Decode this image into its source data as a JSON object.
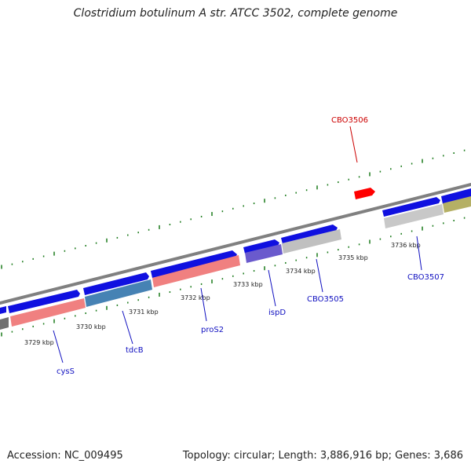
{
  "title": "Clostridium botulinum A str. ATCC 3502, complete genome",
  "footer": {
    "accession": "Accession: NC_009495",
    "summary": "Topology: circular; Length: 3,886,916 bp; Genes: 3,686"
  },
  "colors": {
    "backbone": "#808080",
    "cds_forward": "#1010e0",
    "highlight": "#ff0000",
    "tick_marks": "#1a7a1a",
    "label_blue": "#1010c0",
    "label_red": "#cc0000"
  },
  "ticks": [
    {
      "label": "3729 kbp"
    },
    {
      "label": "3730 kbp"
    },
    {
      "label": "3731 kbp"
    },
    {
      "label": "3732 kbp"
    },
    {
      "label": "3733 kbp"
    },
    {
      "label": "3734 kbp"
    },
    {
      "label": "3735 kbp"
    },
    {
      "label": "3736 kbp"
    }
  ],
  "gene_labels": [
    {
      "name": "cysS",
      "color": "#1010c0"
    },
    {
      "name": "tdcB",
      "color": "#1010c0"
    },
    {
      "name": "proS2",
      "color": "#1010c0"
    },
    {
      "name": "ispD",
      "color": "#1010c0"
    },
    {
      "name": "CBO3505",
      "color": "#1010c0"
    },
    {
      "name": "CBO3507",
      "color": "#1010c0"
    },
    {
      "name": "CBO3506",
      "color": "#cc0000"
    }
  ]
}
